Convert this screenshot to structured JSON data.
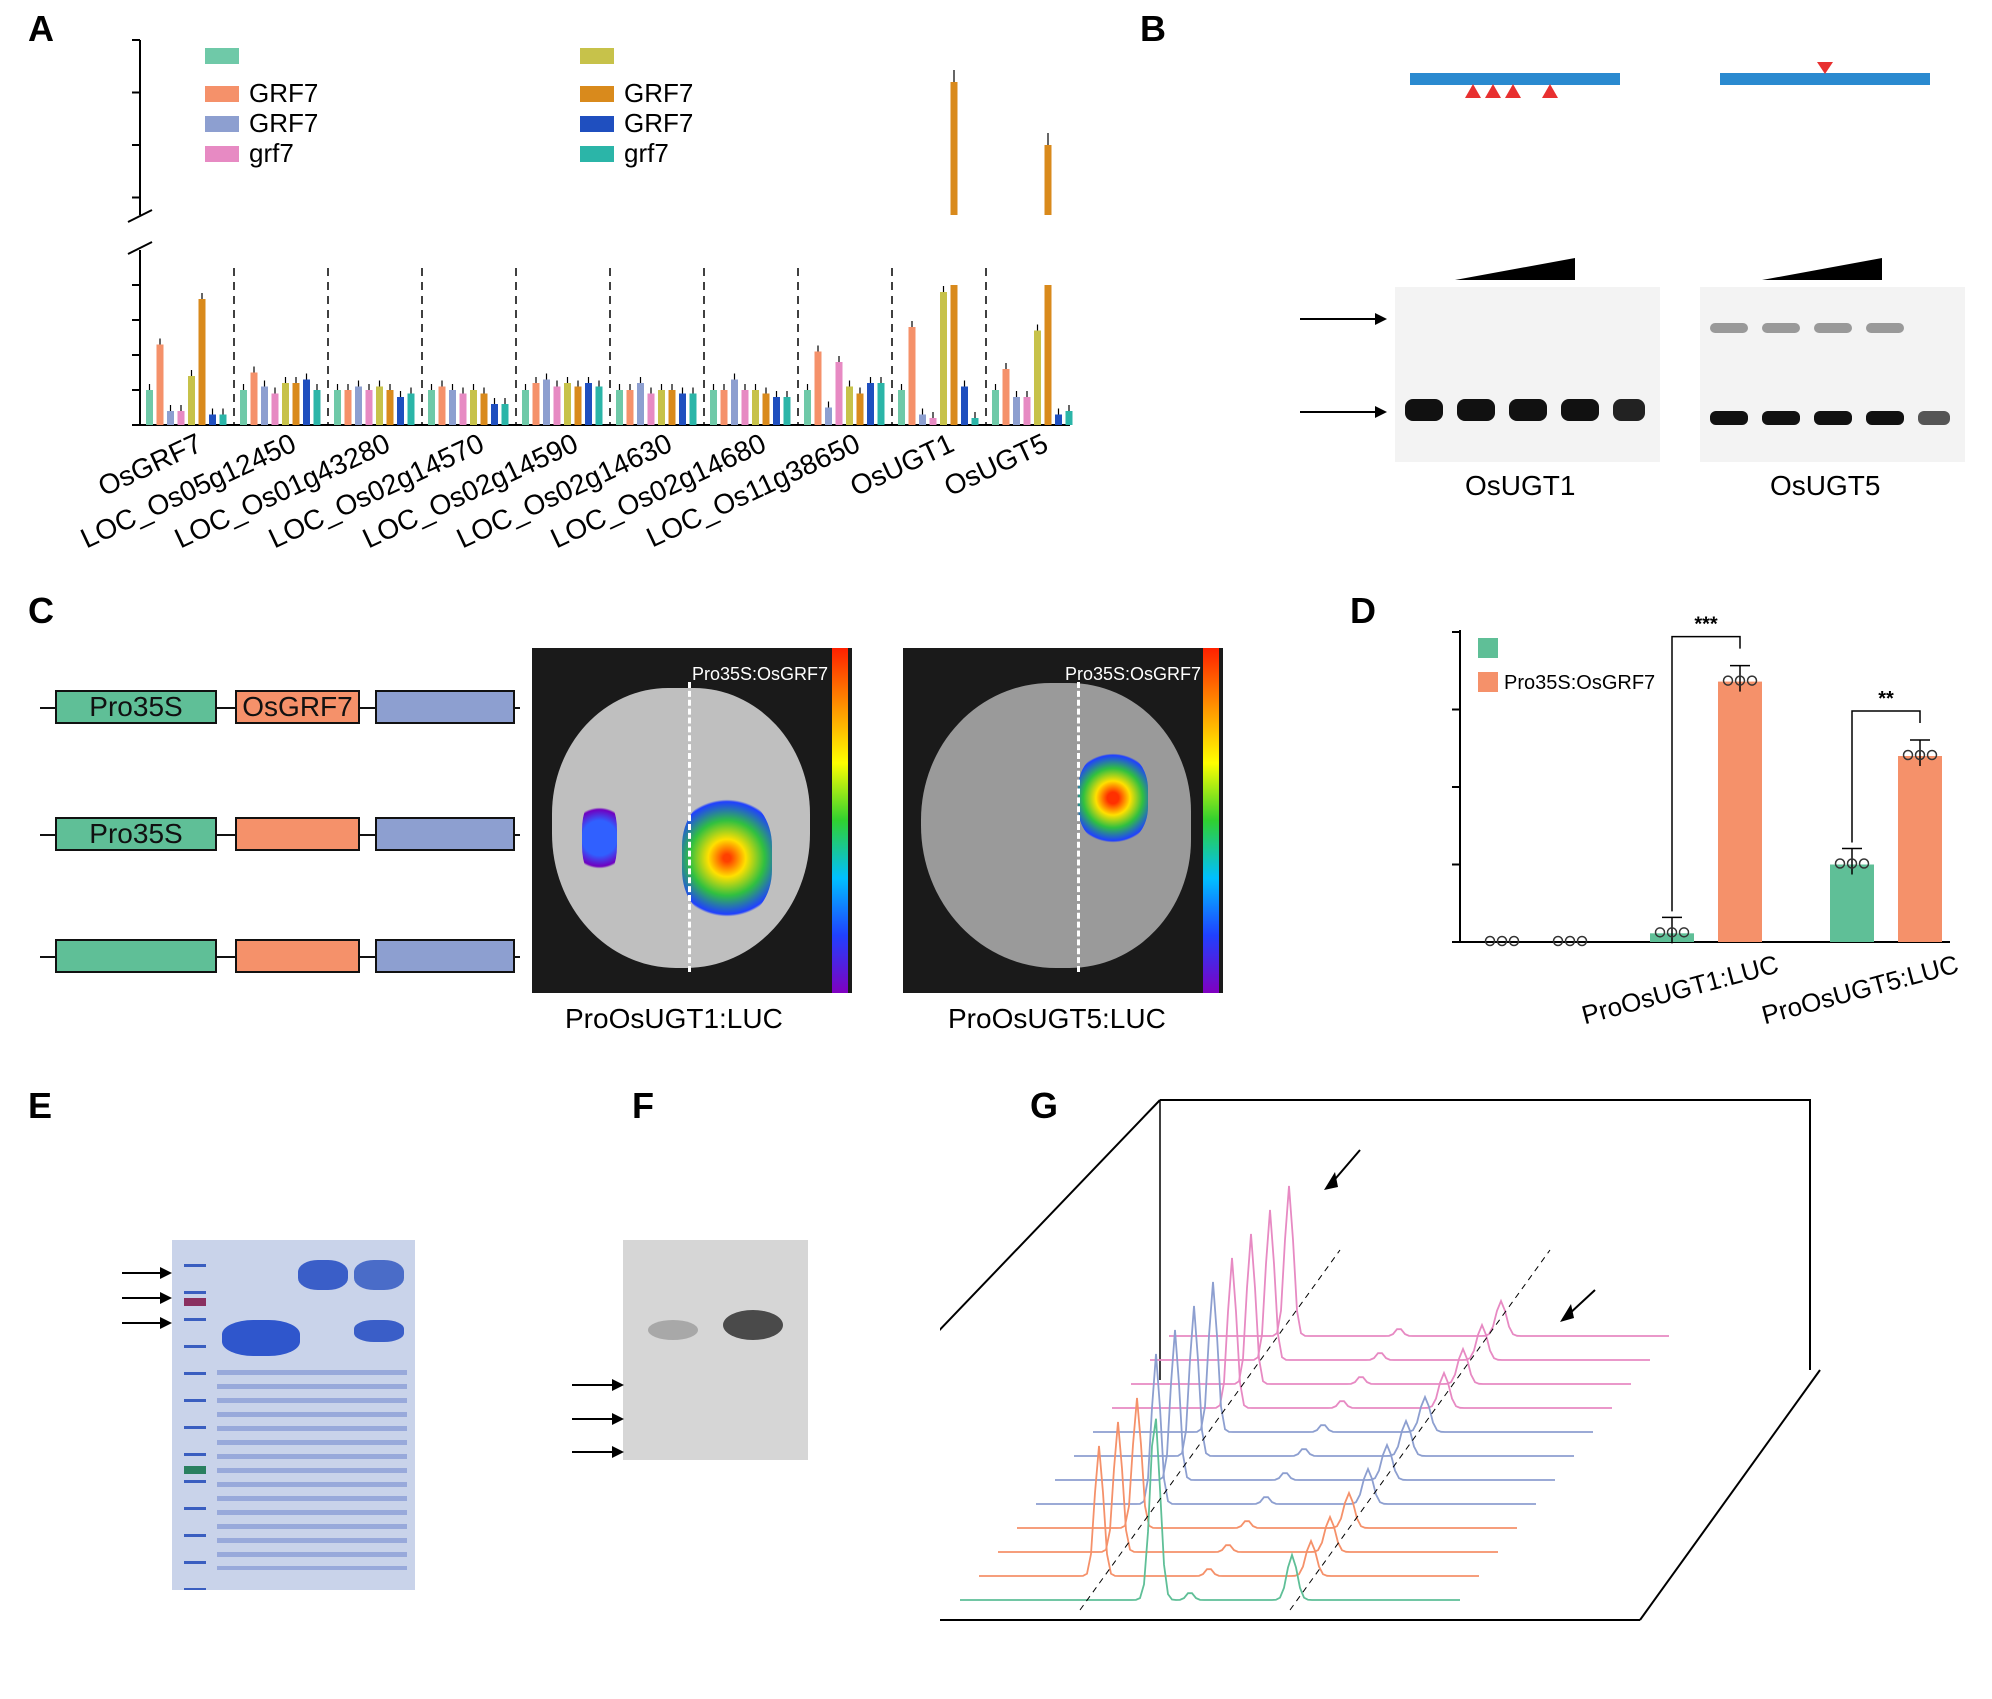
{
  "panel_labels": {
    "a": "A",
    "b": "B",
    "c": "C",
    "d": "D",
    "e": "E",
    "f": "F",
    "g": "G"
  },
  "panel_a": {
    "legend": [
      "",
      "GRF7",
      "GRF7",
      "grf7",
      "",
      "GRF7",
      "GRF7",
      "grf7"
    ],
    "legend_colors": [
      "#6fc9a8",
      "#f5916a",
      "#8d9fd0",
      "#e78ac3",
      "#c7c24a",
      "#d98a1c",
      "#1f4fbf",
      "#2bb5a8"
    ]
  },
  "chart_data": [
    {
      "type": "bar",
      "categories": [
        "OsGRF7",
        "LOC_Os05g12450",
        "LOC_Os01g43280",
        "LOC_Os02g14570",
        "LOC_Os02g14590",
        "LOC_Os02g14630",
        "LOC_Os02g14680",
        "LOC_Os11g38650",
        "OsUGT1",
        "OsUGT5"
      ],
      "series": [
        {
          "values": [
            1.0,
            1.0,
            1.0,
            1.0,
            1.0,
            1.0,
            1.0,
            1.0,
            1.0,
            1.0
          ],
          "color": "#6fc9a8"
        },
        {
          "name": "GRF7",
          "values": [
            2.3,
            1.5,
            1.0,
            1.1,
            1.2,
            1.0,
            1.0,
            2.1,
            2.8,
            1.6
          ],
          "color": "#f5916a"
        },
        {
          "name": "GRF7",
          "values": [
            0.4,
            1.1,
            1.1,
            1.0,
            1.3,
            1.2,
            1.3,
            0.5,
            0.3,
            0.8
          ],
          "color": "#8d9fd0"
        },
        {
          "name": "grf7",
          "values": [
            0.4,
            0.9,
            1.0,
            0.9,
            1.1,
            0.9,
            1.0,
            1.8,
            0.2,
            0.8
          ],
          "color": "#e78ac3"
        },
        {
          "values": [
            1.4,
            1.2,
            1.1,
            1.0,
            1.2,
            1.0,
            1.0,
            1.1,
            3.8,
            2.7
          ],
          "color": "#c7c24a"
        },
        {
          "name": "GRF7",
          "values": [
            3.6,
            1.2,
            1.0,
            0.9,
            1.1,
            1.0,
            0.9,
            0.9,
            48,
            30
          ],
          "color": "#d98a1c"
        },
        {
          "name": "GRF7",
          "values": [
            0.3,
            1.3,
            0.8,
            0.6,
            1.2,
            0.9,
            0.8,
            1.2,
            1.1,
            0.3
          ],
          "color": "#1f4fbf"
        },
        {
          "name": "grf7",
          "values": [
            0.3,
            1.0,
            0.9,
            0.6,
            1.1,
            0.9,
            0.8,
            1.2,
            0.2,
            0.4
          ],
          "color": "#2bb5a8"
        }
      ]
    },
    {
      "type": "bar",
      "categories": [
        "",
        "ProOsUGT1:LUC",
        "ProOsUGT5:LUC"
      ],
      "series": [
        {
          "values": [
            0.0,
            0.28,
            2.5
          ],
          "color": "#5fbf97"
        },
        {
          "name": "Pro35S:OsGRF7",
          "values": [
            0.0,
            8.4,
            6.0
          ],
          "color": "#f5916a"
        }
      ],
      "significance": [
        "***",
        "**"
      ]
    }
  ],
  "panel_b": {
    "gene1": "OsUGT1",
    "gene2": "OsUGT5"
  },
  "panel_c": {
    "constructs": [
      [
        "Pro35S",
        "OsGRF7",
        ""
      ],
      [
        "Pro35S",
        "",
        ""
      ],
      [
        "",
        "",
        ""
      ]
    ],
    "leaf_caption1": "ProOsUGT1:LUC",
    "leaf_caption2": "ProOsUGT5:LUC",
    "overlay_label": "Pro35S:OsGRF7"
  },
  "panel_d": {
    "legend2": "Pro35S:OsGRF7"
  }
}
